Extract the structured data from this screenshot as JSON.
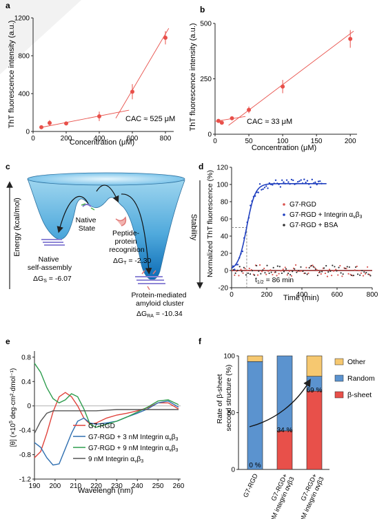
{
  "panels": {
    "a": {
      "letter": "a",
      "ylabel": "ThT fluorescence intensity (a.u.)",
      "xlabel": "Concentration (μM)",
      "annotation": "CAC ≈ 525 μM",
      "xticks": [
        "0",
        "200",
        "400",
        "600",
        "800"
      ],
      "yticks": [
        "0",
        "400",
        "800",
        "1200"
      ]
    },
    "b": {
      "letter": "b",
      "ylabel": "ThT fluorescence intensity (a.u.)",
      "xlabel": "Concentration (μM)",
      "annotation": "CAC ≈ 33 μM",
      "xticks": [
        "0",
        "50",
        "100",
        "150",
        "200"
      ],
      "yticks": [
        "0",
        "250",
        "500"
      ]
    },
    "c": {
      "letter": "c",
      "energy_label": "Energy (kcal/mol)",
      "stability_label": "Stability",
      "native_state": [
        "Native",
        "State"
      ],
      "peptide_recognition": [
        "Peptide-",
        "protein",
        "recognition"
      ],
      "delta_gt": "ΔG",
      "delta_gt_sub": "T",
      "delta_gt_val": " = -2.30",
      "native_self": [
        "Native",
        "self-assembly"
      ],
      "delta_gs": "ΔG",
      "delta_gs_sub": "S",
      "delta_gs_val": " = -6.07",
      "cluster": [
        "Protein-mediated",
        "amyloid cluster"
      ],
      "delta_gra": "ΔG",
      "delta_gra_sub": "RA",
      "delta_gra_val": " = -10.34"
    },
    "d": {
      "letter": "d",
      "ylabel": "Normalized ThT fluorescence (%)",
      "xlabel": "Time (min)",
      "t_half": "t",
      "t_half_sub": "1/2",
      "t_half_val": " = 86 min",
      "xticks": [
        "0",
        "200",
        "400",
        "600",
        "800"
      ],
      "yticks": [
        "-20",
        "0",
        "20",
        "40",
        "60",
        "80",
        "100",
        "120"
      ],
      "legend": [
        {
          "label": "G7-RGD",
          "color": "#d9534f"
        },
        {
          "label": "G7-RGD + Integrin α",
          "sub1": "v",
          "mid": "β",
          "sub2": "3",
          "color": "#1f3fbf"
        },
        {
          "label": "G7-RGD + BSA",
          "color": "#333333"
        }
      ]
    },
    "e": {
      "letter": "e",
      "ylabel": "[θ] (×10",
      "ylabel_sup": "5",
      "ylabel_rest": " deg·cm²·dmol⁻¹)",
      "xlabel": "Wavelengh (nm)",
      "xticks": [
        "190",
        "200",
        "210",
        "220",
        "230",
        "240",
        "250",
        "260"
      ],
      "yticks": [
        "-1.2",
        "-0.8",
        "-0.4",
        "0",
        "0.4",
        "0.8"
      ],
      "legend": [
        {
          "label": "G7-RGD",
          "color": "#e0413a"
        },
        {
          "label": "G7-RGD + 3 nM Integrin α",
          "sub1": "v",
          "mid": "β",
          "sub2": "3",
          "color": "#2f6fb0"
        },
        {
          "label": "G7-RGD + 9 nM Integrin α",
          "sub1": "v",
          "mid": "β",
          "sub2": "3",
          "color": "#2e9d4e"
        },
        {
          "label": "9 nM Integrin α",
          "sub1": "v",
          "mid": "β",
          "sub2": "3",
          "color": "#555555"
        }
      ]
    },
    "f": {
      "letter": "f",
      "ylabel": [
        "Rate of β-sheet",
        "second structure (%)"
      ],
      "yticks": [
        "0",
        "50",
        "100"
      ],
      "categories": [
        "G7-RGD",
        "G7-RGD+",
        "G7-RGD+"
      ],
      "cat_sub": [
        "",
        "3 nM integrin αvβ3",
        "9 nM integrin αvβ3"
      ],
      "bar_labels": [
        "0 %",
        "34 %",
        "69 %"
      ],
      "legend": [
        {
          "label": "Other",
          "color": "#f6c870"
        },
        {
          "label": "Random",
          "color": "#5b93cf"
        },
        {
          "label": "β-sheet",
          "color": "#e8504a"
        }
      ]
    }
  },
  "chart_data": [
    {
      "type": "scatter",
      "xlabel": "Concentration (μM)",
      "ylabel": "ThT fluorescence intensity (a.u.)",
      "xlim": [
        0,
        850
      ],
      "ylim": [
        0,
        1200
      ],
      "x": [
        50,
        100,
        200,
        400,
        600,
        800
      ],
      "y": [
        45,
        90,
        85,
        160,
        420,
        990
      ],
      "err": [
        15,
        30,
        15,
        50,
        80,
        70
      ],
      "annotation": "CAC ≈ 525 μM"
    },
    {
      "type": "scatter",
      "xlabel": "Concentration (μM)",
      "ylabel": "ThT fluorescence intensity (a.u.)",
      "xlim": [
        0,
        210
      ],
      "ylim": [
        0,
        500
      ],
      "x": [
        5,
        10,
        25,
        50,
        100,
        200
      ],
      "y": [
        60,
        52,
        72,
        110,
        215,
        430
      ],
      "err": [
        5,
        6,
        8,
        15,
        30,
        40
      ],
      "annotation": "CAC ≈ 33 μM"
    },
    {
      "type": "line",
      "xlabel": "Time (min)",
      "ylabel": "Normalized ThT fluorescence (%)",
      "xlim": [
        0,
        800
      ],
      "ylim": [
        -20,
        120
      ],
      "series": [
        {
          "name": "G7-RGD",
          "x": [
            0,
            800
          ],
          "y": [
            0,
            0
          ]
        },
        {
          "name": "G7-RGD + Integrin αvβ3",
          "x": [
            0,
            30,
            60,
            86,
            120,
            150,
            200,
            300,
            540
          ],
          "y": [
            3,
            15,
            32,
            50,
            78,
            92,
            99,
            100,
            100
          ]
        },
        {
          "name": "G7-RGD + BSA",
          "x": [
            0,
            800
          ],
          "y": [
            1,
            1
          ]
        }
      ],
      "annotation": "t1/2 = 86 min"
    },
    {
      "type": "line",
      "xlabel": "Wavelengh (nm)",
      "ylabel": "[θ] (×10⁵ deg·cm²·dmol⁻¹)",
      "xlim": [
        190,
        261
      ],
      "ylim": [
        -1.2,
        0.9
      ],
      "x": [
        190,
        193,
        196,
        199,
        202,
        205,
        208,
        211,
        214,
        217,
        220,
        225,
        230,
        235,
        240,
        245,
        250,
        255,
        260
      ],
      "series": [
        {
          "name": "G7-RGD",
          "y": [
            -0.85,
            -0.75,
            -0.45,
            -0.1,
            0.15,
            0.22,
            0.15,
            0.0,
            -0.2,
            -0.3,
            -0.28,
            -0.2,
            -0.15,
            -0.12,
            -0.08,
            -0.03,
            0.05,
            0.05,
            -0.05
          ]
        },
        {
          "name": "G7-RGD + 3 nM Integrin αvβ3",
          "y": [
            -0.6,
            -0.68,
            -0.85,
            -0.97,
            -0.95,
            -0.7,
            -0.45,
            -0.25,
            -0.2,
            -0.28,
            -0.3,
            -0.28,
            -0.25,
            -0.18,
            -0.12,
            -0.05,
            0.05,
            0.08,
            -0.02
          ]
        },
        {
          "name": "G7-RGD + 9 nM Integrin αvβ3",
          "y": [
            0.7,
            0.55,
            0.3,
            0.12,
            0.05,
            0.1,
            0.2,
            0.15,
            -0.05,
            -0.3,
            -0.35,
            -0.3,
            -0.25,
            -0.18,
            -0.1,
            -0.02,
            0.08,
            0.1,
            0.02
          ]
        },
        {
          "name": "9 nM Integrin αvβ3",
          "y": [
            -0.45,
            -0.25,
            -0.12,
            -0.08,
            -0.08,
            -0.08,
            -0.08,
            -0.08,
            -0.08,
            -0.08,
            -0.08,
            -0.07,
            -0.06,
            -0.06,
            -0.06,
            -0.06,
            -0.06,
            -0.06,
            -0.06
          ]
        }
      ]
    },
    {
      "type": "bar",
      "ylabel": "Rate of β-sheet second structure (%)",
      "categories": [
        "G7-RGD",
        "G7-RGD+ 3 nM integrin αvβ3",
        "G7-RGD+ 9 nM integrin αvβ3"
      ],
      "ylim": [
        0,
        100
      ],
      "series": [
        {
          "name": "β-sheet",
          "values": [
            0,
            34,
            69
          ]
        },
        {
          "name": "Random",
          "values": [
            95,
            66,
            13
          ]
        },
        {
          "name": "Other",
          "values": [
            5,
            0,
            18
          ]
        }
      ]
    }
  ]
}
